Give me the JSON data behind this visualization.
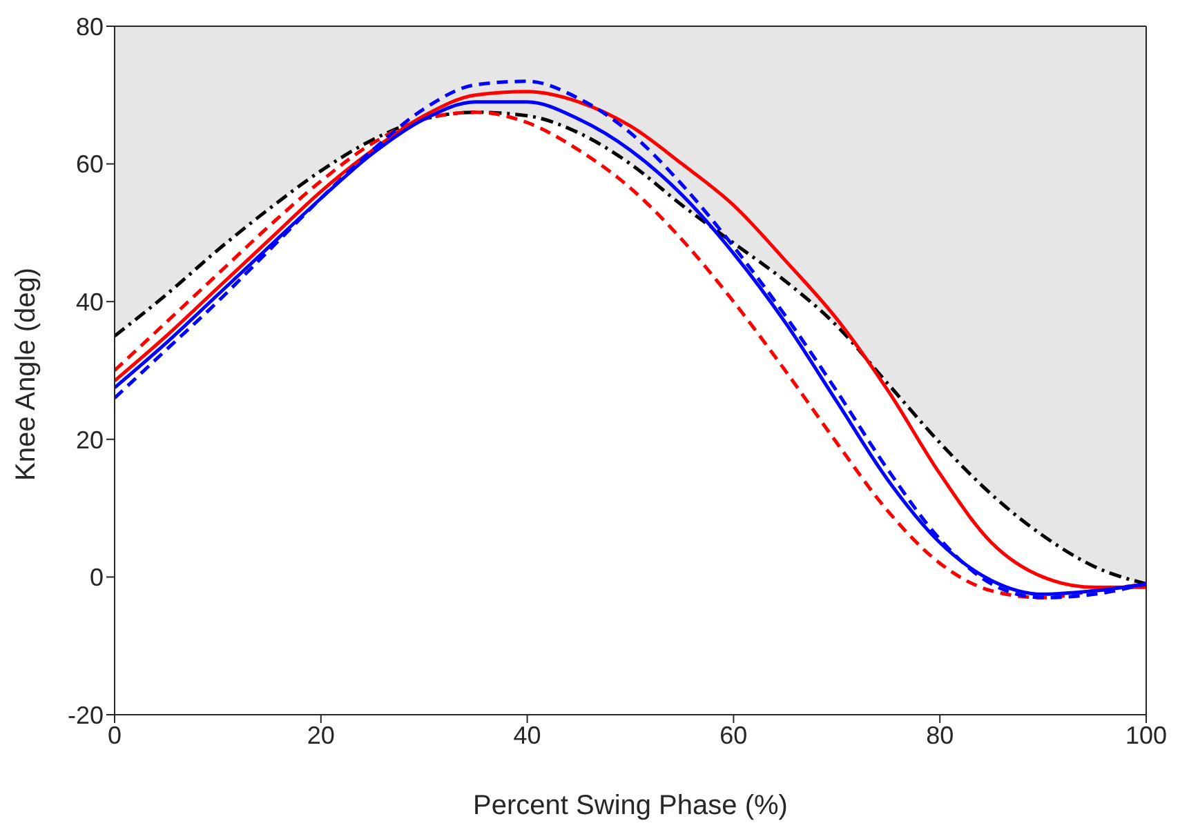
{
  "chart_data": {
    "type": "line",
    "xlabel": "Percent Swing Phase (%)",
    "ylabel": "Knee Angle (deg)",
    "x": [
      0,
      5,
      10,
      15,
      20,
      25,
      30,
      35,
      40,
      45,
      50,
      55,
      60,
      65,
      70,
      75,
      80,
      85,
      90,
      95,
      100
    ],
    "xlim": [
      0,
      100
    ],
    "xticks": [
      0,
      20,
      40,
      60,
      80,
      100
    ],
    "ylim": [
      -20,
      80
    ],
    "yticks": [
      -20,
      0,
      20,
      40,
      60,
      80
    ],
    "grid": false,
    "legend": false,
    "marker": "none",
    "series": [
      {
        "color": "#e6e6e6",
        "type": "area",
        "lower": [
          35,
          41,
          47.5,
          53.5,
          59,
          63.5,
          66.5,
          67.5,
          67,
          64.5,
          60,
          54,
          48.5,
          43,
          36.5,
          28,
          19.5,
          12,
          6,
          1.5,
          -1
        ],
        "upper": [
          80,
          80,
          80,
          80,
          80,
          80,
          80,
          80,
          80,
          80,
          80,
          80,
          80,
          80,
          80,
          80,
          80,
          80,
          80,
          80,
          80
        ],
        "values": [
          null,
          null,
          null,
          null,
          null,
          null,
          null,
          null,
          null,
          null,
          null,
          null,
          null,
          null,
          null,
          null,
          null,
          null,
          null,
          null,
          null
        ]
      },
      {
        "color": "#000000",
        "line_style": "dashdot",
        "values": [
          35,
          41,
          47.5,
          53.5,
          59,
          63.5,
          66.5,
          67.5,
          67,
          64.5,
          60,
          54,
          48.5,
          43,
          36.5,
          28,
          19.5,
          12,
          6,
          1.5,
          -1
        ]
      },
      {
        "color": "#ff0000",
        "line_style": "solid",
        "values": [
          28.5,
          35,
          42,
          49,
          56,
          62,
          67,
          70,
          70.5,
          69,
          65.5,
          60,
          54,
          46,
          37.5,
          27,
          15,
          5,
          0,
          -1.5,
          -1.5
        ]
      },
      {
        "color": "#ff0000",
        "line_style": "dashed",
        "values": [
          30,
          37,
          44,
          51,
          57.5,
          63,
          66.5,
          67.5,
          66,
          62,
          56.5,
          49,
          40,
          30,
          19.5,
          9.5,
          2,
          -2,
          -3,
          -2,
          -1
        ]
      },
      {
        "color": "#0000ff",
        "line_style": "solid",
        "values": [
          27.5,
          34,
          41,
          48,
          55,
          61.5,
          66.5,
          69,
          69,
          66.5,
          62,
          55.5,
          47,
          37,
          25.5,
          14,
          5,
          -0.5,
          -2.5,
          -2,
          -1
        ]
      },
      {
        "color": "#0000ff",
        "line_style": "dashed",
        "values": [
          26,
          33,
          40,
          47.5,
          55,
          62,
          68,
          71.5,
          72,
          69.5,
          64.5,
          57,
          48,
          38,
          27,
          15.5,
          5.5,
          -1,
          -3,
          -2.5,
          -1
        ]
      }
    ]
  }
}
